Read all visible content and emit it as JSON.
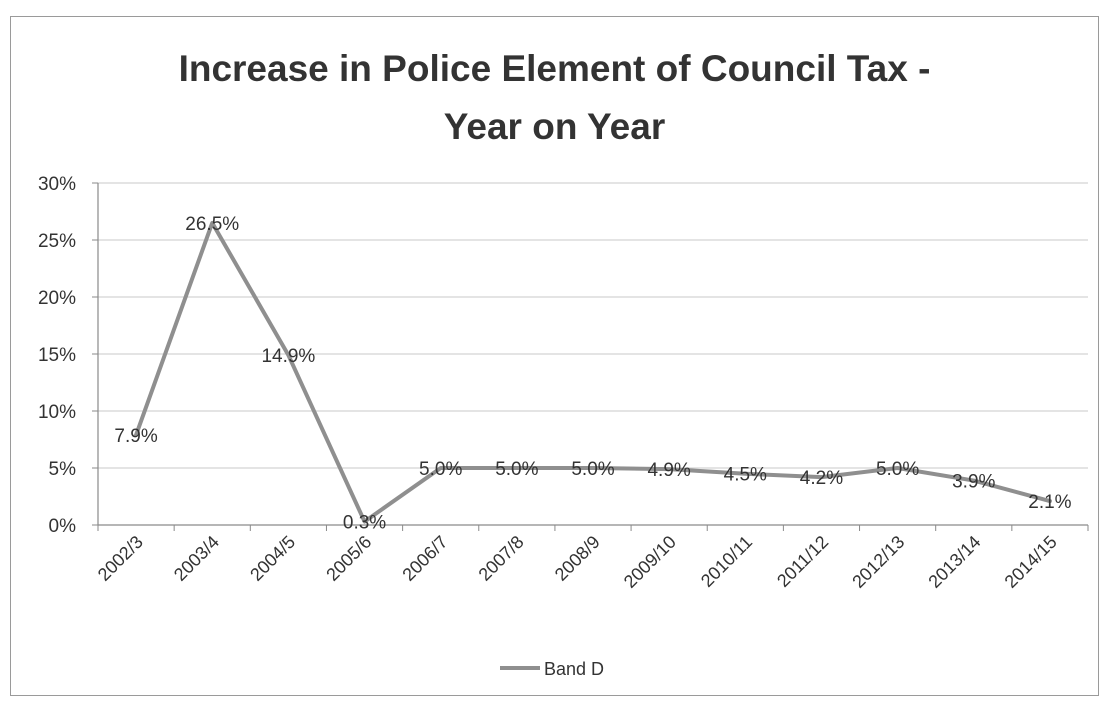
{
  "chart_data": {
    "type": "line",
    "title": "Increase in Police Element of Council Tax - Year on Year",
    "title_lines": [
      "Increase in Police Element of Council Tax -",
      "Year on Year"
    ],
    "categories": [
      "2002/3",
      "2003/4",
      "2004/5",
      "2005/6",
      "2006/7",
      "2007/8",
      "2008/9",
      "2009/10",
      "2010/11",
      "2011/12",
      "2012/13",
      "2013/14",
      "2014/15"
    ],
    "series": [
      {
        "name": "Band D",
        "values": [
          7.9,
          26.5,
          14.9,
          0.3,
          5.0,
          5.0,
          5.0,
          4.9,
          4.5,
          4.2,
          5.0,
          3.9,
          2.1
        ],
        "labels": [
          "7.9%",
          "26.5%",
          "14.9%",
          "0.3%",
          "5.0%",
          "5.0%",
          "5.0%",
          "4.9%",
          "4.5%",
          "4.2%",
          "5.0%",
          "3.9%",
          "2.1%"
        ],
        "color": "#8f8f8f"
      }
    ],
    "ylim": [
      0,
      30
    ],
    "yticks": [
      "0%",
      "5%",
      "10%",
      "15%",
      "20%",
      "25%",
      "30%"
    ],
    "ytick_values": [
      0,
      5,
      10,
      15,
      20,
      25,
      30
    ],
    "xlabel": "",
    "ylabel": "",
    "grid": true,
    "legend": "bottom",
    "gridColor": "#c8c8c8",
    "axisColor": "#8a8a8a"
  }
}
